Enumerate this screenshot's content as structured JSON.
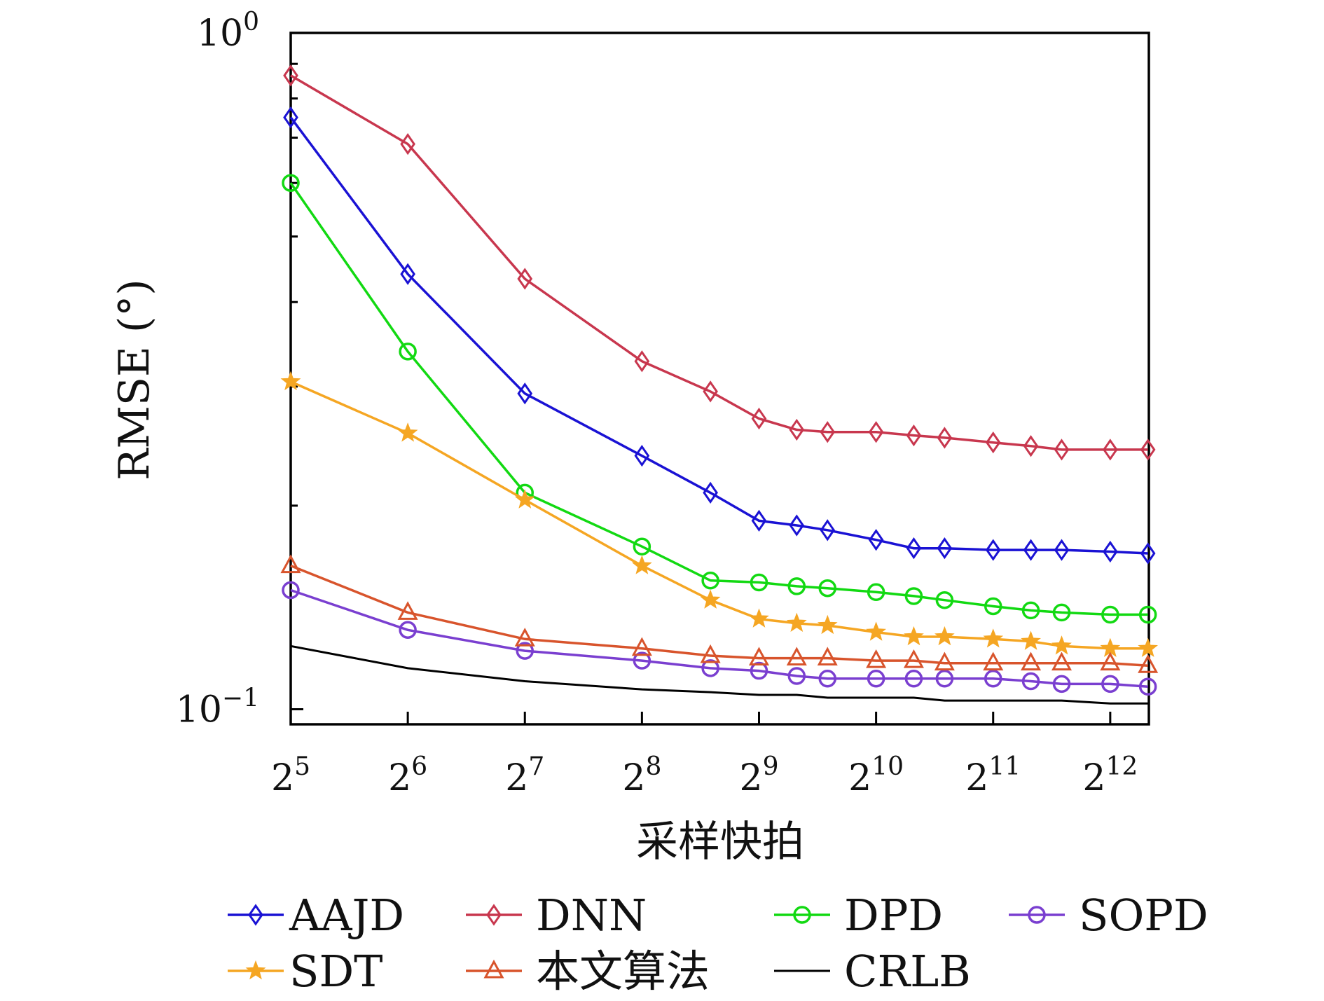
{
  "chart_data": {
    "type": "line",
    "xlabel": "采样快拍",
    "ylabel": "RMSE (°)",
    "x_scale": "log2",
    "y_scale": "log10",
    "xlim_exponent": [
      5,
      12.33
    ],
    "ylim": [
      0.095,
      1.0
    ],
    "x_ticks": [
      {
        "exp": 5,
        "base": "2",
        "sup": "5"
      },
      {
        "exp": 6,
        "base": "2",
        "sup": "6"
      },
      {
        "exp": 7,
        "base": "2",
        "sup": "7"
      },
      {
        "exp": 8,
        "base": "2",
        "sup": "8"
      },
      {
        "exp": 9,
        "base": "2",
        "sup": "9"
      },
      {
        "exp": 10,
        "base": "2",
        "sup": "10"
      },
      {
        "exp": 11,
        "base": "2",
        "sup": "11"
      },
      {
        "exp": 12,
        "base": "2",
        "sup": "12"
      }
    ],
    "y_ticks": [
      {
        "value": 1.0,
        "base": "10",
        "sup": "0"
      },
      {
        "value": 0.1,
        "base": "10",
        "sup": "−1"
      }
    ],
    "x_exponents": [
      5,
      6,
      7,
      8,
      8.585,
      9,
      9.322,
      9.585,
      10,
      10.322,
      10.585,
      11,
      11.322,
      11.585,
      12,
      12.322
    ],
    "series": [
      {
        "name": "AAJD",
        "color": "#1a12d4",
        "marker": "diamond",
        "values": [
          0.75,
          0.44,
          0.293,
          0.237,
          0.209,
          0.19,
          0.187,
          0.184,
          0.178,
          0.173,
          0.173,
          0.172,
          0.172,
          0.172,
          0.171,
          0.17
        ]
      },
      {
        "name": "DNN",
        "color": "#c8374e",
        "marker": "diamond",
        "values": [
          0.865,
          0.685,
          0.433,
          0.327,
          0.295,
          0.269,
          0.259,
          0.257,
          0.257,
          0.254,
          0.252,
          0.248,
          0.245,
          0.242,
          0.242,
          0.242
        ]
      },
      {
        "name": "DPD",
        "color": "#12d912",
        "marker": "circle",
        "values": [
          0.6,
          0.338,
          0.209,
          0.174,
          0.155,
          0.154,
          0.152,
          0.151,
          0.149,
          0.147,
          0.145,
          0.142,
          0.14,
          0.139,
          0.138,
          0.138
        ]
      },
      {
        "name": "SOPD",
        "color": "#7a3fd0",
        "marker": "circle",
        "values": [
          0.15,
          0.131,
          0.122,
          0.118,
          0.115,
          0.114,
          0.112,
          0.111,
          0.111,
          0.111,
          0.111,
          0.111,
          0.11,
          0.109,
          0.109,
          0.108
        ]
      },
      {
        "name": "SDT",
        "color": "#f5a623",
        "marker": "star",
        "values": [
          0.305,
          0.256,
          0.204,
          0.163,
          0.145,
          0.136,
          0.134,
          0.133,
          0.13,
          0.128,
          0.128,
          0.127,
          0.126,
          0.124,
          0.123,
          0.123
        ]
      },
      {
        "name": "本文算法",
        "color": "#d8542c",
        "marker": "triangle",
        "values": [
          0.163,
          0.139,
          0.127,
          0.123,
          0.12,
          0.119,
          0.119,
          0.119,
          0.118,
          0.118,
          0.117,
          0.117,
          0.117,
          0.117,
          0.117,
          0.116
        ]
      },
      {
        "name": "CRLB",
        "color": "#000000",
        "marker": "none",
        "values": [
          0.124,
          0.115,
          0.11,
          0.107,
          0.106,
          0.105,
          0.105,
          0.104,
          0.104,
          0.104,
          0.103,
          0.103,
          0.103,
          0.103,
          0.102,
          0.102
        ]
      }
    ],
    "legend_position": "bottom",
    "grid": false
  }
}
